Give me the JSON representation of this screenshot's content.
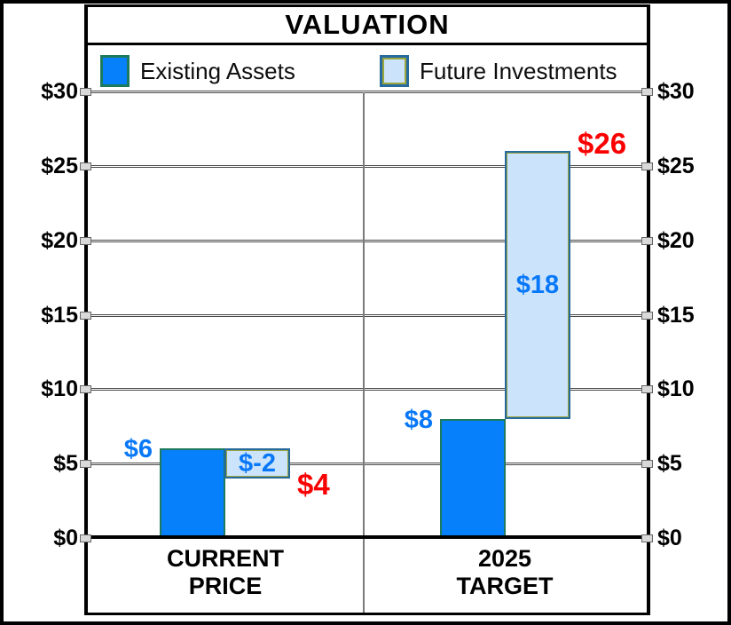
{
  "chart_data": {
    "type": "bar",
    "subtype": "floating-waterfall",
    "title": "VALUATION",
    "legend": [
      {
        "label": "Existing Assets",
        "color": "#0780FB"
      },
      {
        "label": "Future Investments",
        "color": "#CCE4FB"
      }
    ],
    "legend_position": "top",
    "categories": [
      "CURRENT PRICE",
      "2025 TARGET"
    ],
    "category_lines": [
      [
        "CURRENT",
        "PRICE"
      ],
      [
        "2025",
        "TARGET"
      ]
    ],
    "series": [
      {
        "name": "Existing Assets",
        "values": [
          6,
          8
        ]
      },
      {
        "name": "Future Investments",
        "values": [
          -2,
          18
        ]
      }
    ],
    "segments": [
      {
        "category": 0,
        "series": 0,
        "from": 0,
        "to": 6,
        "label": "$6",
        "label_pos": "left"
      },
      {
        "category": 0,
        "series": 1,
        "from": 6,
        "to": 4,
        "label": "$-2",
        "label_pos": "inside"
      },
      {
        "category": 1,
        "series": 0,
        "from": 0,
        "to": 8,
        "label": "$8",
        "label_pos": "left"
      },
      {
        "category": 1,
        "series": 1,
        "from": 8,
        "to": 26,
        "label": "$18",
        "label_pos": "inside"
      }
    ],
    "totals": [
      {
        "category": 0,
        "value": 4,
        "label": "$4",
        "direction": "down"
      },
      {
        "category": 1,
        "value": 26,
        "label": "$26",
        "direction": "up"
      }
    ],
    "ylim": [
      0,
      30
    ],
    "ytick_step": 5,
    "yticks": [
      {
        "value": 0,
        "label": "$0"
      },
      {
        "value": 5,
        "label": "$5"
      },
      {
        "value": 10,
        "label": "$10"
      },
      {
        "value": 15,
        "label": "$15"
      },
      {
        "value": 20,
        "label": "$20"
      },
      {
        "value": 25,
        "label": "$25"
      },
      {
        "value": 30,
        "label": "$30"
      }
    ],
    "y_axis_sides": "both",
    "grid": true
  },
  "colors": {
    "existing_assets_fill": "#0780FB",
    "existing_assets_border": "#1D7A5E",
    "future_investments_fill": "#CCE4FB",
    "future_investments_border": "#276A9D",
    "future_investments_border_inner": "#9AA63E",
    "value_label_blue": "#0878F8",
    "total_label_red": "#FB0000",
    "gridline": "#4A4A4A",
    "divider": "#7A7A7A",
    "frame": "#000000",
    "background": "#FFFFFF"
  }
}
